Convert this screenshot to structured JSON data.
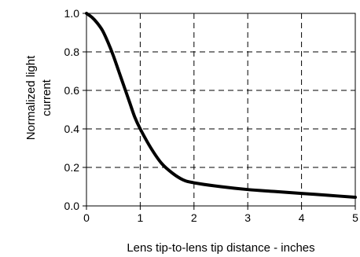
{
  "chart_data": {
    "type": "line",
    "title": "",
    "xlabel": "Lens tip-to-lens tip distance - inches",
    "ylabel_line1": "Normalized light",
    "ylabel_line2": "current",
    "xlim": [
      0,
      5
    ],
    "ylim": [
      0,
      1.0
    ],
    "x_ticks": [
      "0",
      "1",
      "2",
      "3",
      "4",
      "5"
    ],
    "y_ticks": [
      "0.0",
      "0.2",
      "0.4",
      "0.6",
      "0.8",
      "1.0"
    ],
    "grid": true,
    "grid_style": "dashed",
    "series": [
      {
        "color": "#000000",
        "x": [
          0,
          0.1,
          0.2,
          0.3,
          0.4,
          0.5,
          0.6,
          0.7,
          0.8,
          0.9,
          1.0,
          1.2,
          1.4,
          1.6,
          1.8,
          2.0,
          2.5,
          3.0,
          3.5,
          4.0,
          4.5,
          5.0
        ],
        "y": [
          1.0,
          0.98,
          0.95,
          0.91,
          0.85,
          0.78,
          0.7,
          0.62,
          0.54,
          0.46,
          0.4,
          0.3,
          0.22,
          0.17,
          0.135,
          0.12,
          0.1,
          0.085,
          0.075,
          0.065,
          0.055,
          0.045
        ]
      }
    ]
  }
}
